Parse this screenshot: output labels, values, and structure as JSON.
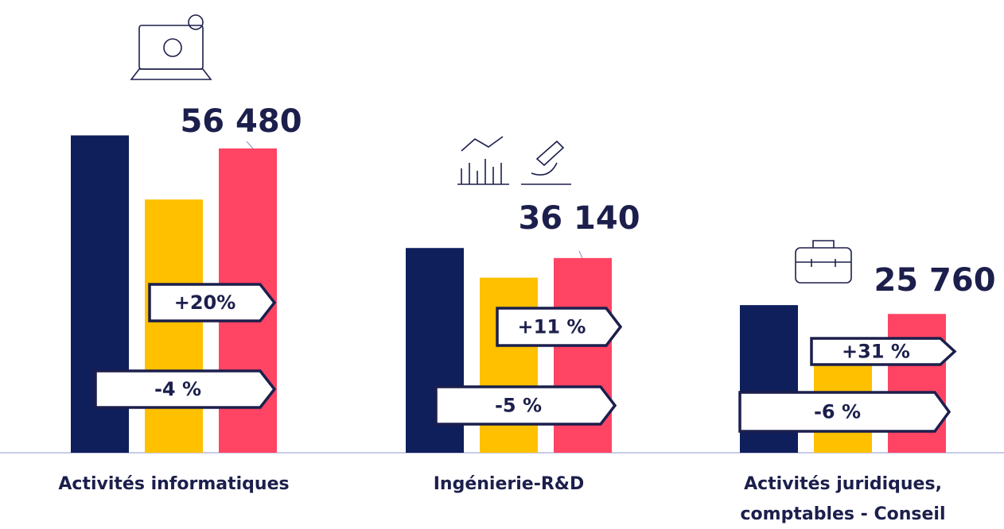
{
  "chart_data": {
    "type": "bar",
    "categories": [
      "Activités informatiques",
      "Ingénierie-R&D",
      "Activités juridiques, comptables - Conseil"
    ],
    "series": [
      {
        "color": "#0f1f5c",
        "values": [
          58900,
          38000,
          27400
        ]
      },
      {
        "color": "#ffc000",
        "values": [
          47000,
          32500,
          19700
        ]
      },
      {
        "color": "#ff4464",
        "values": [
          56480,
          36140,
          25760
        ],
        "value_labels": [
          "56 480",
          "36 140",
          "25 760"
        ]
      }
    ],
    "ylim": [
      0,
      60000
    ],
    "annotations": [
      {
        "text": "+20%"
      },
      {
        "text": "-4 %"
      },
      {
        "text": "+11 %"
      },
      {
        "text": "-5 %"
      },
      {
        "text": "+31 %"
      },
      {
        "text": "-6 %"
      }
    ]
  }
}
